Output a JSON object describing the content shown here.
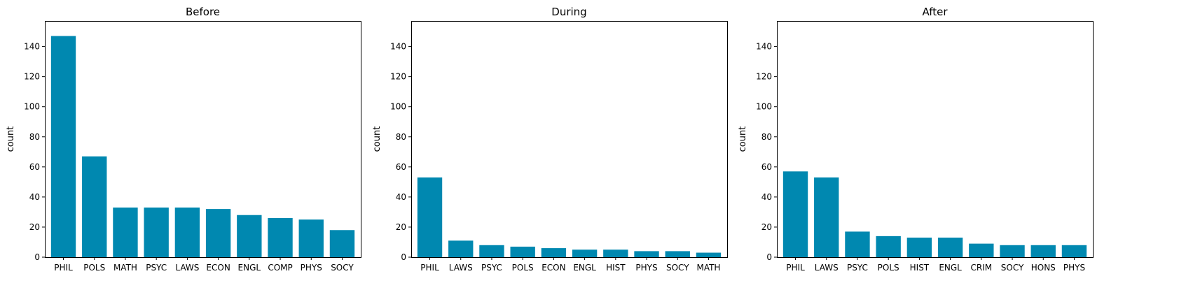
{
  "chart_data": [
    {
      "type": "bar",
      "title": "Before",
      "xlabel": "",
      "ylabel": "count",
      "ylim": [
        0,
        157
      ],
      "yticks": [
        0,
        20,
        40,
        60,
        80,
        100,
        120,
        140
      ],
      "categories": [
        "PHIL",
        "POLS",
        "MATH",
        "PSYC",
        "LAWS",
        "ECON",
        "ENGL",
        "COMP",
        "PHYS",
        "SOCY"
      ],
      "values": [
        147,
        67,
        33,
        33,
        33,
        32,
        28,
        26,
        25,
        18
      ],
      "bar_color": "#0088b0"
    },
    {
      "type": "bar",
      "title": "During",
      "xlabel": "",
      "ylabel": "count",
      "ylim": [
        0,
        157
      ],
      "yticks": [
        0,
        20,
        40,
        60,
        80,
        100,
        120,
        140
      ],
      "categories": [
        "PHIL",
        "LAWS",
        "PSYC",
        "POLS",
        "ECON",
        "ENGL",
        "HIST",
        "PHYS",
        "SOCY",
        "MATH"
      ],
      "values": [
        53,
        11,
        8,
        7,
        6,
        5,
        5,
        4,
        4,
        3
      ],
      "bar_color": "#0088b0"
    },
    {
      "type": "bar",
      "title": "After",
      "xlabel": "",
      "ylabel": "count",
      "ylim": [
        0,
        157
      ],
      "yticks": [
        0,
        20,
        40,
        60,
        80,
        100,
        120,
        140
      ],
      "categories": [
        "PHIL",
        "LAWS",
        "PSYC",
        "POLS",
        "HIST",
        "ENGL",
        "CRIM",
        "SOCY",
        "HONS",
        "PHYS"
      ],
      "values": [
        57,
        53,
        17,
        14,
        13,
        13,
        9,
        8,
        8,
        8
      ],
      "bar_color": "#0088b0"
    }
  ]
}
